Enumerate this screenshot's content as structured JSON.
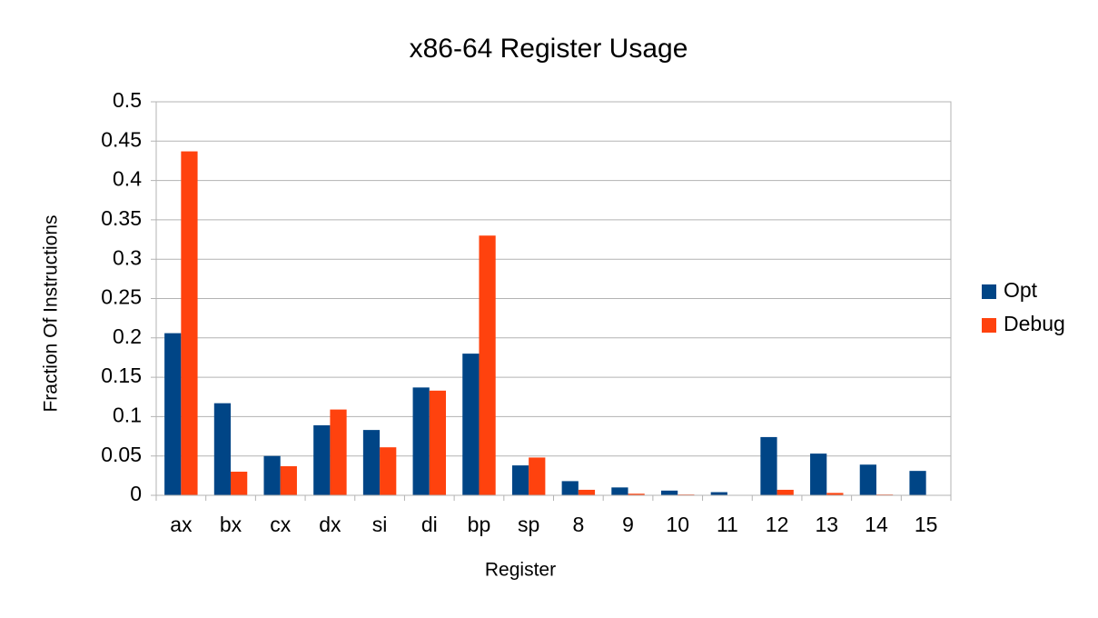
{
  "chart_data": {
    "type": "bar",
    "title": "x86-64 Register Usage",
    "x_label": "Register",
    "y_label": "Fraction Of Instructions",
    "categories": [
      "ax",
      "bx",
      "cx",
      "dx",
      "si",
      "di",
      "bp",
      "sp",
      "8",
      "9",
      "10",
      "11",
      "12",
      "13",
      "14",
      "15"
    ],
    "series": [
      {
        "name": "Opt",
        "color": "#004586",
        "values": [
          0.206,
          0.117,
          0.05,
          0.089,
          0.083,
          0.137,
          0.18,
          0.038,
          0.018,
          0.01,
          0.006,
          0.004,
          0.074,
          0.053,
          0.039,
          0.031
        ]
      },
      {
        "name": "Debug",
        "color": "#ff420e",
        "values": [
          0.437,
          0.03,
          0.037,
          0.109,
          0.061,
          0.133,
          0.33,
          0.048,
          0.007,
          0.002,
          0.001,
          0,
          0.007,
          0.003,
          0.001,
          0
        ]
      }
    ],
    "ylim": [
      0,
      0.5
    ],
    "yticks": [
      0,
      0.05,
      0.1,
      0.15,
      0.2,
      0.25,
      0.3,
      0.35,
      0.4,
      0.45,
      0.5
    ],
    "grid": true,
    "legend": "right"
  }
}
